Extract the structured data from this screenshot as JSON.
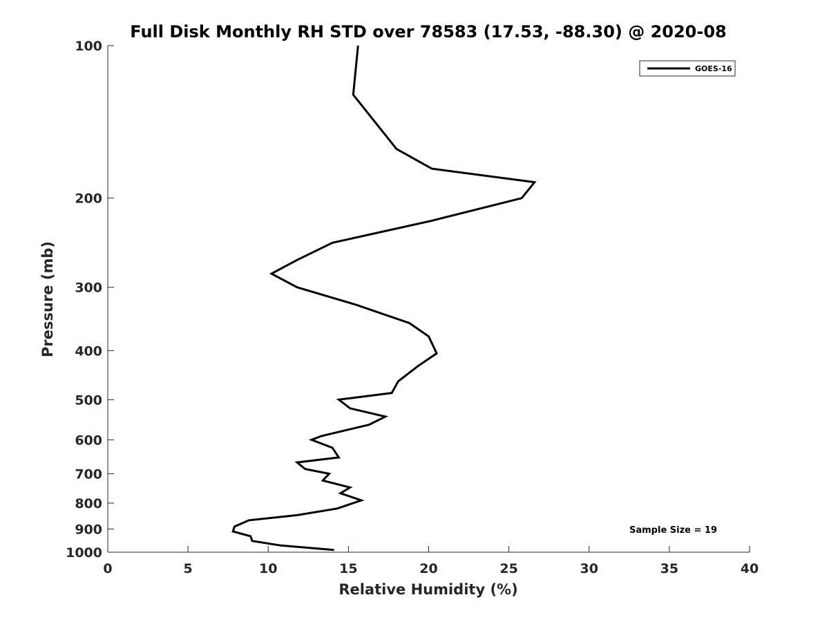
{
  "chart_data": {
    "type": "line",
    "title": "Full Disk Monthly RH STD over 78583 (17.53, -88.30) @ 2020-08",
    "xlabel": "Relative Humidity (%)",
    "ylabel": "Pressure (mb)",
    "xlim": [
      0,
      40
    ],
    "ylim": [
      100,
      1000
    ],
    "yscale": "log",
    "y_reversed": true,
    "grid": false,
    "x_ticks": [
      "0",
      "5",
      "10",
      "15",
      "20",
      "25",
      "30",
      "35",
      "40"
    ],
    "y_ticks": [
      "100",
      "200",
      "300",
      "400",
      "500",
      "600",
      "700",
      "800",
      "900",
      "1000"
    ],
    "legend": {
      "position": "top-right",
      "entries": [
        "GOES-16"
      ]
    },
    "annotation": "Sample Size = 19",
    "series": [
      {
        "name": "GOES-16",
        "color": "#000000",
        "points": [
          [
            15.6,
            100
          ],
          [
            15.3,
            125
          ],
          [
            18.0,
            160
          ],
          [
            20.2,
            175
          ],
          [
            26.6,
            186
          ],
          [
            25.8,
            200
          ],
          [
            20.1,
            222
          ],
          [
            14.0,
            245
          ],
          [
            11.8,
            265
          ],
          [
            10.2,
            282
          ],
          [
            11.8,
            300
          ],
          [
            15.5,
            325
          ],
          [
            18.8,
            353
          ],
          [
            20.0,
            375
          ],
          [
            20.5,
            405
          ],
          [
            19.3,
            430
          ],
          [
            18.1,
            460
          ],
          [
            17.7,
            485
          ],
          [
            14.4,
            500
          ],
          [
            15.1,
            520
          ],
          [
            17.3,
            540
          ],
          [
            16.3,
            560
          ],
          [
            13.3,
            590
          ],
          [
            12.7,
            600
          ],
          [
            14.0,
            622
          ],
          [
            14.4,
            650
          ],
          [
            11.8,
            665
          ],
          [
            12.3,
            685
          ],
          [
            13.8,
            700
          ],
          [
            13.4,
            722
          ],
          [
            15.1,
            745
          ],
          [
            14.5,
            765
          ],
          [
            15.8,
            790
          ],
          [
            14.3,
            820
          ],
          [
            11.8,
            845
          ],
          [
            8.8,
            865
          ],
          [
            7.9,
            890
          ],
          [
            7.8,
            910
          ],
          [
            8.9,
            930
          ],
          [
            9.0,
            950
          ],
          [
            10.8,
            970
          ],
          [
            14.1,
            990
          ]
        ]
      }
    ]
  }
}
